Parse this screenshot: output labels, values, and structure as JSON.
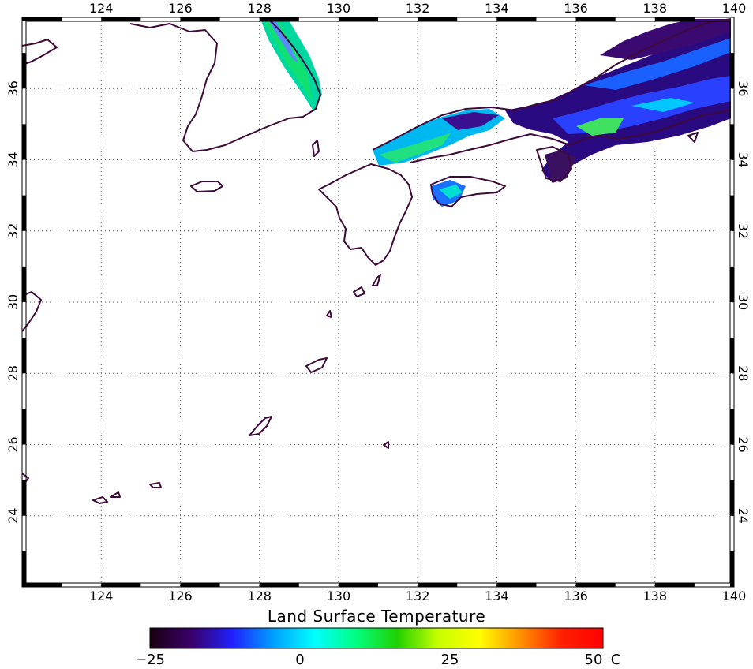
{
  "map": {
    "lon_range": [
      122,
      140
    ],
    "lat_range": [
      22,
      38
    ],
    "lon_ticks": [
      "124",
      "126",
      "128",
      "130",
      "132",
      "134",
      "136",
      "138",
      "140"
    ],
    "lat_ticks": [
      "24",
      "26",
      "28",
      "30",
      "32",
      "34",
      "36"
    ],
    "grid": true
  },
  "colorbar": {
    "title": "Land Surface Temperature",
    "min_label": "−25",
    "mid_label_1": "0",
    "mid_label_2": "25",
    "max_label": "50",
    "unit": "C",
    "stops": [
      "#1a0010",
      "#3a0068",
      "#2020ff",
      "#00a0ff",
      "#00ffff",
      "#00ff80",
      "#20d000",
      "#c8ff00",
      "#ffff00",
      "#ff9000",
      "#ff2000",
      "#ff0000"
    ]
  },
  "legend_colors": {
    "coastline": "#3d0a3a",
    "frame": "#000000",
    "background": "#ffffff"
  }
}
